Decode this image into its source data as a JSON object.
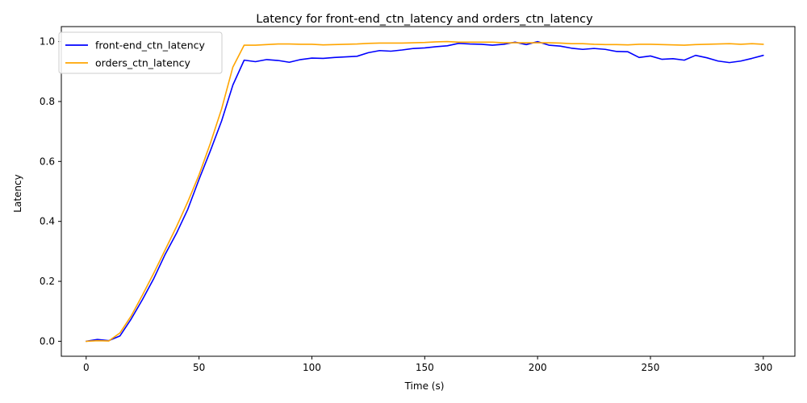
{
  "chart_data": {
    "type": "line",
    "title": "Latency for front-end_ctn_latency and orders_ctn_latency",
    "xlabel": "Time (s)",
    "ylabel": "Latency",
    "xlim": [
      -11,
      314
    ],
    "ylim": [
      -0.05,
      1.05
    ],
    "xticks": [
      0,
      50,
      100,
      150,
      200,
      250,
      300
    ],
    "yticks": [
      0.0,
      0.2,
      0.4,
      0.6,
      0.8,
      1.0
    ],
    "xtick_labels": [
      "0",
      "50",
      "100",
      "150",
      "200",
      "250",
      "300"
    ],
    "ytick_labels": [
      "0.0",
      "0.2",
      "0.4",
      "0.6",
      "0.8",
      "1.0"
    ],
    "grid": false,
    "legend_position": "upper-left",
    "x": [
      0,
      5,
      10,
      15,
      20,
      25,
      30,
      35,
      40,
      45,
      50,
      55,
      60,
      65,
      70,
      75,
      80,
      85,
      90,
      95,
      100,
      105,
      110,
      115,
      120,
      125,
      130,
      135,
      140,
      145,
      150,
      155,
      160,
      165,
      170,
      175,
      180,
      185,
      190,
      195,
      200,
      205,
      210,
      215,
      220,
      225,
      230,
      235,
      240,
      245,
      250,
      255,
      260,
      265,
      270,
      275,
      280,
      285,
      290,
      295,
      300
    ],
    "series": [
      {
        "name": "front-end_ctn_latency",
        "color": "#0000ff",
        "values": [
          0.0,
          0.006,
          0.002,
          0.018,
          0.075,
          0.14,
          0.21,
          0.29,
          0.36,
          0.44,
          0.54,
          0.635,
          0.735,
          0.855,
          0.938,
          0.933,
          0.94,
          0.937,
          0.931,
          0.94,
          0.945,
          0.944,
          0.947,
          0.949,
          0.951,
          0.963,
          0.97,
          0.968,
          0.972,
          0.977,
          0.979,
          0.983,
          0.986,
          0.994,
          0.992,
          0.991,
          0.988,
          0.991,
          0.998,
          0.99,
          1.0,
          0.988,
          0.985,
          0.978,
          0.974,
          0.977,
          0.974,
          0.967,
          0.966,
          0.947,
          0.952,
          0.941,
          0.943,
          0.938,
          0.954,
          0.946,
          0.935,
          0.93,
          0.935,
          0.944,
          0.954
        ]
      },
      {
        "name": "orders_ctn_latency",
        "color": "#ffa500",
        "values": [
          0.0,
          0.002,
          0.001,
          0.028,
          0.085,
          0.155,
          0.228,
          0.305,
          0.382,
          0.465,
          0.555,
          0.66,
          0.775,
          0.915,
          0.988,
          0.988,
          0.99,
          0.992,
          0.992,
          0.991,
          0.991,
          0.989,
          0.99,
          0.991,
          0.992,
          0.994,
          0.995,
          0.995,
          0.995,
          0.996,
          0.997,
          0.999,
          1.0,
          0.998,
          0.998,
          0.998,
          0.998,
          0.996,
          0.996,
          0.996,
          0.996,
          0.996,
          0.995,
          0.993,
          0.993,
          0.991,
          0.99,
          0.99,
          0.989,
          0.991,
          0.991,
          0.99,
          0.989,
          0.988,
          0.99,
          0.991,
          0.992,
          0.993,
          0.991,
          0.993,
          0.991
        ]
      }
    ]
  }
}
